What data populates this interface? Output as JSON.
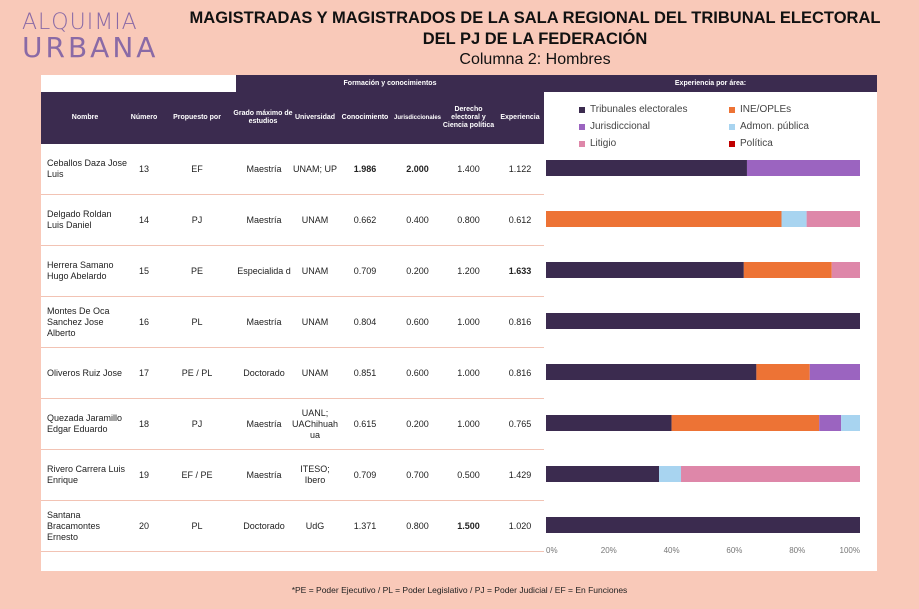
{
  "logo": {
    "line1": "ALQUIMIA",
    "line2": "URBANA"
  },
  "header": {
    "title_line1": "MAGISTRADAS Y MAGISTRADOS DE LA SALA REGIONAL DEL TRIBUNAL ELECTORAL",
    "title_line2": "DEL PJ DE LA FEDERACIÓN",
    "subtitle": "Columna 2: Hombres"
  },
  "table": {
    "group_headers": {
      "formacion": "Formación y conocimientos",
      "experiencia": "Experiencia por área:"
    },
    "columns": {
      "nombre": "Nombre",
      "numero": "Número",
      "propuesto": "Propuesto por",
      "grado": "Grado máximo de estudios",
      "universidad": "Universidad",
      "conocimiento": "Conocimiento",
      "jurisdiccionales": "Jurisdiccionales",
      "derecho": "Derecho electoral y Ciencia política",
      "experiencia": "Experiencia"
    },
    "rows": [
      {
        "nombre": "Ceballos Daza Jose Luis",
        "numero": "13",
        "propuesto": "EF",
        "grado": "Maestría",
        "universidad": "UNAM; UP",
        "conocimiento": "1.986",
        "jurisdiccionales": "2.000",
        "derecho": "1.400",
        "experiencia": "1.122"
      },
      {
        "nombre": "Delgado Roldan Luis Daniel",
        "numero": "14",
        "propuesto": "PJ",
        "grado": "Maestría",
        "universidad": "UNAM",
        "conocimiento": "0.662",
        "jurisdiccionales": "0.400",
        "derecho": "0.800",
        "experiencia": "0.612"
      },
      {
        "nombre": "Herrera Samano Hugo Abelardo",
        "numero": "15",
        "propuesto": "PE",
        "grado": "Especialida d",
        "universidad": "UNAM",
        "conocimiento": "0.709",
        "jurisdiccionales": "0.200",
        "derecho": "1.200",
        "experiencia": "1.633"
      },
      {
        "nombre": "Montes De Oca Sanchez Jose Alberto",
        "numero": "16",
        "propuesto": "PL",
        "grado": "Maestría",
        "universidad": "UNAM",
        "conocimiento": "0.804",
        "jurisdiccionales": "0.600",
        "derecho": "1.000",
        "experiencia": "0.816"
      },
      {
        "nombre": "Oliveros Ruiz Jose",
        "numero": "17",
        "propuesto": "PE / PL",
        "grado": "Doctorado",
        "universidad": "UNAM",
        "conocimiento": "0.851",
        "jurisdiccionales": "0.600",
        "derecho": "1.000",
        "experiencia": "0.816"
      },
      {
        "nombre": "Quezada Jaramillo Edgar Eduardo",
        "numero": "18",
        "propuesto": "PJ",
        "grado": "Maestría",
        "universidad": "UANL; UAChihuah ua",
        "conocimiento": "0.615",
        "jurisdiccionales": "0.200",
        "derecho": "1.000",
        "experiencia": "0.765"
      },
      {
        "nombre": "Rivero Carrera Luis Enrique",
        "numero": "19",
        "propuesto": "EF / PE",
        "grado": "Maestría",
        "universidad": "ITESO; Ibero",
        "conocimiento": "0.709",
        "jurisdiccionales": "0.700",
        "derecho": "0.500",
        "experiencia": "1.429"
      },
      {
        "nombre": "Santana Bracamontes Ernesto",
        "numero": "20",
        "propuesto": "PL",
        "grado": "Doctorado",
        "universidad": "UdG",
        "conocimiento": "1.371",
        "jurisdiccionales": "0.800",
        "derecho": "1.500",
        "experiencia": "1.020"
      }
    ],
    "bold_cells": [
      [
        0,
        "conocimiento"
      ],
      [
        0,
        "jurisdiccionales"
      ],
      [
        2,
        "experiencia"
      ],
      [
        7,
        "derecho"
      ]
    ]
  },
  "chart_data": {
    "type": "bar",
    "orientation": "horizontal-stacked-100",
    "categories": [
      "Ceballos Daza Jose Luis",
      "Delgado Roldan Luis Daniel",
      "Herrera Samano Hugo Abelardo",
      "Montes De Oca Sanchez Jose Alberto",
      "Oliveros Ruiz Jose",
      "Quezada Jaramillo Edgar Eduardo",
      "Rivero Carrera Luis Enrique",
      "Santana Bracamontes Ernesto"
    ],
    "series": [
      {
        "name": "Tribunales electorales",
        "color": "#3b2b4f",
        "values": [
          64,
          0,
          63,
          100,
          67,
          40,
          36,
          100
        ]
      },
      {
        "name": "INE/OPLEs",
        "color": "#ed7335",
        "values": [
          0,
          75,
          28,
          0,
          17,
          47,
          0,
          0
        ]
      },
      {
        "name": "Jurisdiccional",
        "color": "#9b64c0",
        "values": [
          36,
          0,
          0,
          0,
          16,
          7,
          0,
          0
        ]
      },
      {
        "name": "Admon. pública",
        "color": "#a8d4f0",
        "values": [
          0,
          8,
          0,
          0,
          0,
          6,
          7,
          0
        ]
      },
      {
        "name": "Litigio",
        "color": "#de87a9",
        "values": [
          0,
          17,
          9,
          0,
          0,
          0,
          57,
          0
        ]
      },
      {
        "name": "Política",
        "color": "#c00000",
        "values": [
          0,
          0,
          0,
          0,
          0,
          0,
          0,
          0
        ]
      }
    ],
    "xlim": [
      0,
      100
    ],
    "tick_labels": [
      "0%",
      "20%",
      "40%",
      "60%",
      "80%",
      "100%"
    ],
    "legend_position": "top"
  },
  "footer": "*PE = Poder Ejecutivo / PL = Poder Legislativo / PJ = Poder Judicial / EF = En Funciones"
}
